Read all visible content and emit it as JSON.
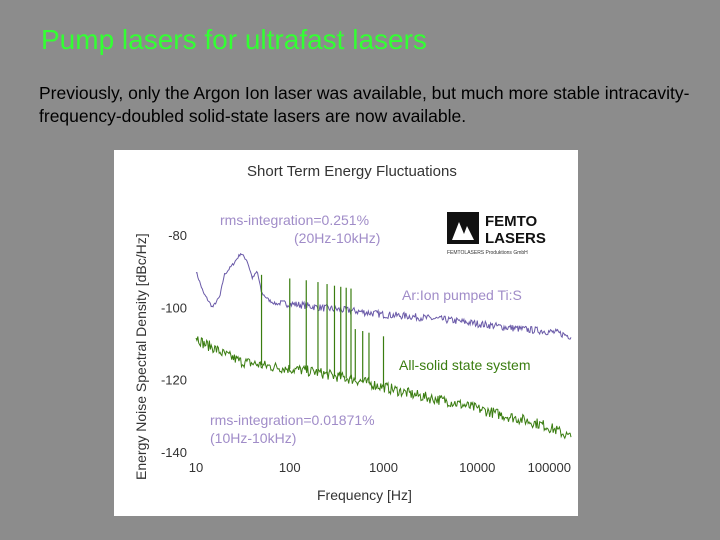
{
  "slide": {
    "title": "Pump lasers for ultrafast lasers",
    "body": "Previously, only the Argon Ion laser was available, but much more stable intracavity-frequency-doubled solid-state lasers are now available."
  },
  "figure": {
    "logo": {
      "line1": "FEMTO",
      "line2": "LASERS",
      "tagline": "FEMTOLASERS Produktions GmbH"
    },
    "annotations": {
      "rms_top": "rms-integration=0.251%",
      "rms_top_range": "(20Hz-10kHz)",
      "rms_bottom": "rms-integration=0.01871%",
      "rms_bottom_range": "(10Hz-10kHz)"
    },
    "colors": {
      "argon": "#6a5aa8",
      "solid": "#3a7d10",
      "annotation": "#a08cc8",
      "text": "#333333"
    }
  },
  "chart_data": {
    "type": "line",
    "title": "Short Term Energy Fluctuations",
    "xlabel": "Frequency [Hz]",
    "ylabel": "Energy Noise Spectral Density [dBc/Hz]",
    "x_scale": "log",
    "xlim": [
      10,
      100000
    ],
    "ylim": [
      -140,
      -75
    ],
    "x_ticks": [
      "10",
      "100",
      "1000",
      "10000",
      "100000"
    ],
    "y_ticks": [
      "-80",
      "-100",
      "-120",
      "-140"
    ],
    "series": [
      {
        "name": "Ar:Ion pumped Ti:S",
        "x": [
          10,
          12,
          15,
          18,
          20,
          25,
          30,
          35,
          40,
          45,
          50,
          60,
          70,
          80,
          100,
          150,
          200,
          300,
          500,
          700,
          1000,
          2000,
          3000,
          5000,
          7000,
          10000,
          20000,
          30000,
          50000,
          70000,
          100000
        ],
        "y": [
          -90,
          -96,
          -100,
          -97,
          -91,
          -88,
          -85,
          -87,
          -92,
          -90,
          -96,
          -98,
          -99,
          -99,
          -99,
          -99.5,
          -100,
          -100.5,
          -101,
          -101.5,
          -102,
          -102.5,
          -103,
          -103.5,
          -104,
          -104.5,
          -105.5,
          -106,
          -106.5,
          -107,
          -108
        ]
      },
      {
        "name": "All-solid state system",
        "x": [
          10,
          12,
          15,
          20,
          25,
          30,
          40,
          50,
          70,
          100,
          150,
          200,
          300,
          500,
          700,
          1000,
          2000,
          3000,
          5000,
          10000,
          20000,
          30000,
          50000,
          70000,
          100000
        ],
        "y": [
          -108,
          -110,
          -111,
          -113,
          -114,
          -115,
          -115.5,
          -116,
          -116.5,
          -117,
          -117.5,
          -118,
          -119,
          -120,
          -121,
          -122,
          -124,
          -125,
          -126,
          -128,
          -130,
          -131,
          -132.5,
          -134,
          -136
        ]
      }
    ]
  }
}
